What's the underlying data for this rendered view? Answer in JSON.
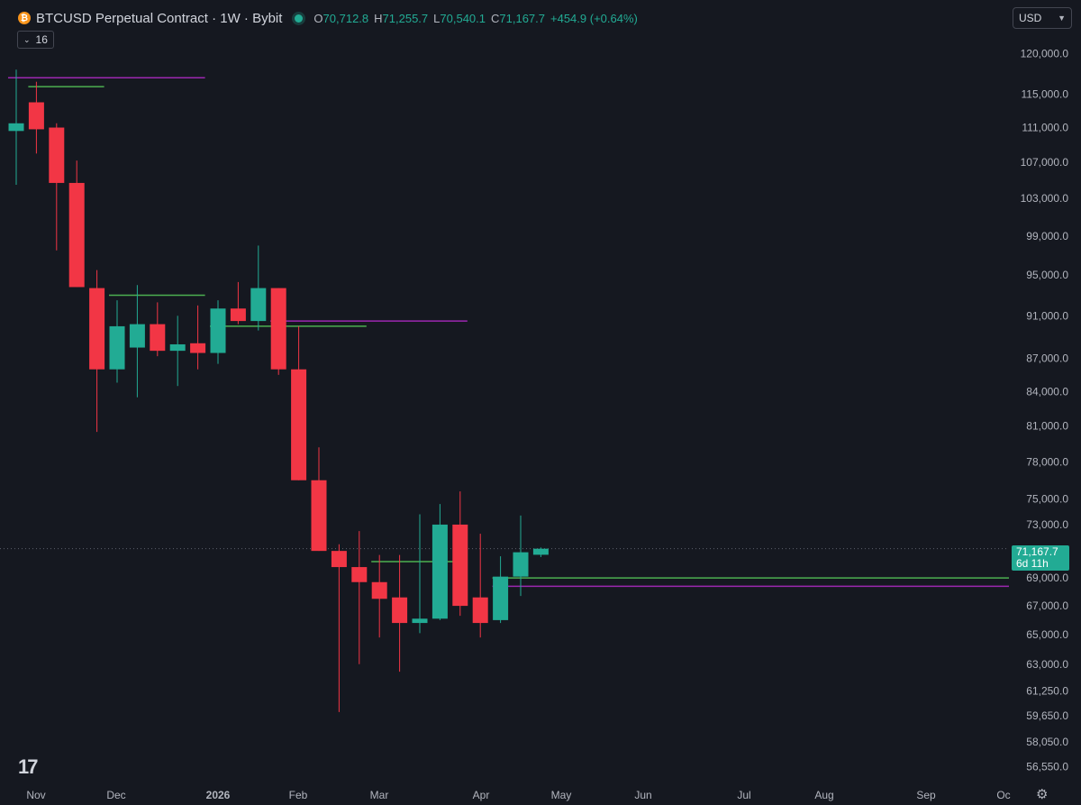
{
  "header": {
    "symbol_icon": "bitcoin-icon",
    "title": "BTCUSD Perpetual Contract · 1W · Bybit",
    "ohlc": {
      "o_label": "O",
      "o_value": "70,712.8",
      "h_label": "H",
      "h_value": "71,255.7",
      "l_label": "L",
      "l_value": "70,540.1",
      "c_label": "C",
      "c_value": "71,167.7",
      "change": "+454.9 (+0.64%)"
    }
  },
  "indicators": {
    "count": "16"
  },
  "currency": {
    "label": "USD"
  },
  "price_tag": {
    "price": "71,167.7",
    "countdown": "6d 11h"
  },
  "colors": {
    "up": "#22ab94",
    "down": "#f23645",
    "bg": "#151820",
    "green_line": "#4caf50",
    "purple_line": "#9c27b0"
  },
  "chart_data": {
    "type": "candlestick",
    "y_scale": "log",
    "ylim": [
      55500,
      127000
    ],
    "y_ticks": [
      "120,000.0",
      "115,000.0",
      "111,000.0",
      "107,000.0",
      "103,000.0",
      "99,000.0",
      "95,000.0",
      "91,000.0",
      "87,000.0",
      "84,000.0",
      "81,000.0",
      "78,000.0",
      "75,000.0",
      "73,000.0",
      "69,000.0",
      "67,000.0",
      "65,000.0",
      "63,000.0",
      "61,250.0",
      "59,650.0",
      "58,050.0",
      "56,550.0"
    ],
    "x_labels": [
      "Nov",
      "Dec",
      "2026",
      "Feb",
      "Mar",
      "Apr",
      "May",
      "Jun",
      "Jul",
      "Aug",
      "Sep",
      "Oc"
    ],
    "candles": [
      {
        "o": 110600,
        "h": 118000,
        "l": 104500,
        "c": 111500
      },
      {
        "o": 114000,
        "h": 116500,
        "l": 108000,
        "c": 110800
      },
      {
        "o": 111000,
        "h": 111500,
        "l": 97500,
        "c": 104700
      },
      {
        "o": 104700,
        "h": 107200,
        "l": 93800,
        "c": 93800
      },
      {
        "o": 93700,
        "h": 95500,
        "l": 80500,
        "c": 86000
      },
      {
        "o": 86000,
        "h": 92500,
        "l": 84800,
        "c": 90000
      },
      {
        "o": 88000,
        "h": 94000,
        "l": 83500,
        "c": 90200
      },
      {
        "o": 90200,
        "h": 92300,
        "l": 87200,
        "c": 87700
      },
      {
        "o": 87700,
        "h": 91000,
        "l": 84500,
        "c": 88300
      },
      {
        "o": 88400,
        "h": 92000,
        "l": 86000,
        "c": 87500
      },
      {
        "o": 87500,
        "h": 92500,
        "l": 86500,
        "c": 91700
      },
      {
        "o": 91700,
        "h": 94300,
        "l": 90200,
        "c": 90500
      },
      {
        "o": 90500,
        "h": 98000,
        "l": 89600,
        "c": 93700
      },
      {
        "o": 93700,
        "h": 93700,
        "l": 85500,
        "c": 86000
      },
      {
        "o": 86000,
        "h": 90000,
        "l": 76500,
        "c": 76500
      },
      {
        "o": 76500,
        "h": 79200,
        "l": 71000,
        "c": 71000
      },
      {
        "o": 71000,
        "h": 71500,
        "l": 59900,
        "c": 69800
      },
      {
        "o": 69800,
        "h": 72500,
        "l": 63000,
        "c": 68700
      },
      {
        "o": 68700,
        "h": 70700,
        "l": 64800,
        "c": 67500
      },
      {
        "o": 67600,
        "h": 70700,
        "l": 62500,
        "c": 65800
      },
      {
        "o": 65800,
        "h": 73800,
        "l": 65100,
        "c": 66100
      },
      {
        "o": 66100,
        "h": 74600,
        "l": 66000,
        "c": 73000
      },
      {
        "o": 73000,
        "h": 75600,
        "l": 66300,
        "c": 67000
      },
      {
        "o": 67600,
        "h": 72300,
        "l": 64800,
        "c": 65800
      },
      {
        "o": 66000,
        "h": 70600,
        "l": 65800,
        "c": 69100
      },
      {
        "o": 69100,
        "h": 73700,
        "l": 67700,
        "c": 70900
      },
      {
        "o": 70712.8,
        "h": 71255.7,
        "l": 70540.1,
        "c": 71167.7
      }
    ],
    "levels": [
      {
        "color": "#9c27b0",
        "value": 117000,
        "from": 0,
        "to": 9
      },
      {
        "color": "#4caf50",
        "value": 115900,
        "from": 1,
        "to": 4
      },
      {
        "color": "#4caf50",
        "value": 93000,
        "from": 5,
        "to": 9
      },
      {
        "color": "#9c27b0",
        "value": 90500,
        "from": 13,
        "to": 22
      },
      {
        "color": "#4caf50",
        "value": 90000,
        "from": 10,
        "to": 17
      },
      {
        "color": "#4caf50",
        "value": 70200,
        "from": 18,
        "to": 22
      },
      {
        "color": "#4caf50",
        "value": 69000,
        "from": 24,
        "to": null
      },
      {
        "color": "#9c27b0",
        "value": 68400,
        "from": 24,
        "to": null
      }
    ],
    "last_price": 71167.7
  }
}
